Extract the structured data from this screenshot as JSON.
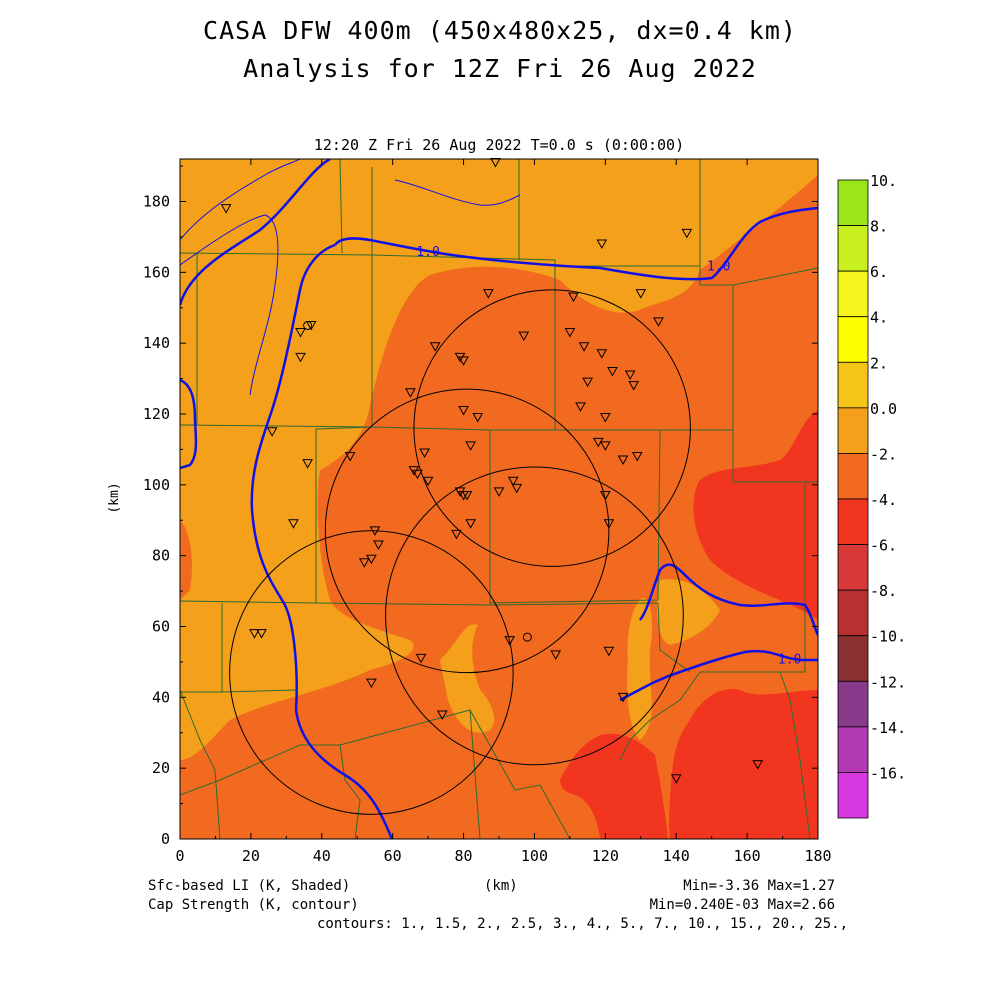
{
  "header": {
    "title_line1": "CASA DFW 400m (450x480x25, dx=0.4 km)",
    "title_line2": "Analysis for 12Z Fri 26 Aug 2022",
    "subtitle": "12:20 Z Fri 26 Aug 2022   T=0.0 s (0:00:00)"
  },
  "footer": {
    "shaded_label": "Sfc-based LI (K, Shaded)",
    "contour_label": "Cap Strength (K, contour)",
    "xunit_label": "(km)",
    "shaded_minmax": "Min=-3.36 Max=1.27",
    "contour_minmax": "Min=0.240E-03 Max=2.66",
    "contours_list": "contours: 1., 1.5, 2., 2.5, 3., 4., 5., 7., 10., 15., 20., 25.,"
  },
  "colors": {
    "c_m3": "#f2351f",
    "c_m1": "#f26a1f",
    "c_p1": "#f5a01a",
    "contour": "#1010e8",
    "county": "#2f6b2f",
    "radar": "#000000"
  },
  "chart_data": {
    "type": "heatmap",
    "xlabel": "(km)",
    "ylabel": "(km)",
    "xlim": [
      0,
      180
    ],
    "ylim": [
      0,
      192
    ],
    "xticks": [
      "0",
      "20",
      "40",
      "60",
      "80",
      "100",
      "120",
      "140",
      "160",
      "180"
    ],
    "yticks": [
      "0",
      "20",
      "40",
      "60",
      "80",
      "100",
      "120",
      "140",
      "160",
      "180"
    ],
    "contour_labels": [
      {
        "text": "1.0",
        "x": 70,
        "y": 166
      },
      {
        "text": "1.0",
        "x": 152,
        "y": 162
      },
      {
        "text": "1.0",
        "x": 172,
        "y": 51
      }
    ],
    "colorbar": {
      "labels": [
        "10.",
        "8.",
        "6.",
        "4.",
        "2.",
        "0.0",
        "-2.",
        "-4.",
        "-6.",
        "-8.",
        "-10.",
        "-12.",
        "-14.",
        "-16."
      ],
      "colors": [
        "#9ae61a",
        "#c8f01e",
        "#f5f51e",
        "#ffff00",
        "#f5c51a",
        "#f5a01a",
        "#f26a1f",
        "#f2351f",
        "#d93838",
        "#b83030",
        "#8a3030",
        "#8a3a8a",
        "#b038b0",
        "#d838e0"
      ]
    },
    "stations": [
      [
        13,
        178
      ],
      [
        34,
        143
      ],
      [
        37,
        145
      ],
      [
        34,
        136
      ],
      [
        26,
        115
      ],
      [
        36,
        106
      ],
      [
        48,
        108
      ],
      [
        32,
        89
      ],
      [
        21,
        58
      ],
      [
        23,
        58
      ],
      [
        54,
        44
      ],
      [
        55,
        87
      ],
      [
        56,
        83
      ],
      [
        54,
        79
      ],
      [
        52,
        78
      ],
      [
        65,
        126
      ],
      [
        72,
        139
      ],
      [
        79,
        136
      ],
      [
        80,
        135
      ],
      [
        87,
        154
      ],
      [
        97,
        142
      ],
      [
        110,
        143
      ],
      [
        111,
        153
      ],
      [
        114,
        139
      ],
      [
        119,
        137
      ],
      [
        122,
        132
      ],
      [
        127,
        131
      ],
      [
        128,
        128
      ],
      [
        115,
        129
      ],
      [
        113,
        122
      ],
      [
        120,
        119
      ],
      [
        80,
        121
      ],
      [
        84,
        119
      ],
      [
        82,
        111
      ],
      [
        69,
        109
      ],
      [
        66,
        104
      ],
      [
        67,
        103
      ],
      [
        70,
        101
      ],
      [
        79,
        98
      ],
      [
        80,
        97
      ],
      [
        81,
        97
      ],
      [
        90,
        98
      ],
      [
        94,
        101
      ],
      [
        95,
        99
      ],
      [
        82,
        89
      ],
      [
        78,
        86
      ],
      [
        68,
        51
      ],
      [
        74,
        35
      ],
      [
        93,
        56
      ],
      [
        106,
        52
      ],
      [
        120,
        97
      ],
      [
        121,
        89
      ],
      [
        120,
        111
      ],
      [
        118,
        112
      ],
      [
        125,
        107
      ],
      [
        129,
        108
      ],
      [
        130,
        154
      ],
      [
        135,
        146
      ],
      [
        143,
        171
      ],
      [
        119,
        168
      ],
      [
        121,
        53
      ],
      [
        125,
        40
      ],
      [
        140,
        17
      ],
      [
        163,
        21
      ],
      [
        89,
        191
      ]
    ],
    "stations_circle": [
      [
        36,
        145
      ],
      [
        98,
        57
      ]
    ],
    "radars": [
      {
        "cx": 105,
        "cy": 116,
        "r": 39
      },
      {
        "cx": 81,
        "cy": 87,
        "r": 40
      },
      {
        "cx": 100,
        "cy": 63,
        "r": 42
      },
      {
        "cx": 54,
        "cy": 47,
        "r": 40
      }
    ]
  }
}
